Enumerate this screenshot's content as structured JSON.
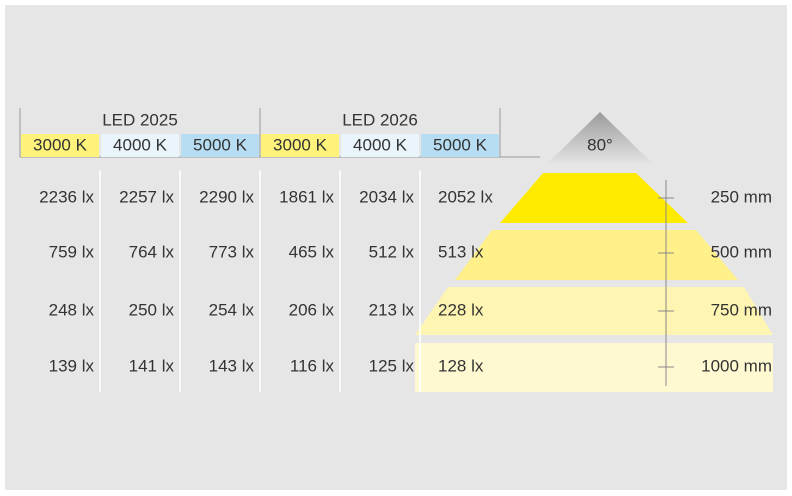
{
  "header": {
    "groups": [
      "LED 2025",
      "LED 2026"
    ],
    "columns": [
      "3000 K",
      "4000 K",
      "5000 K",
      "3000 K",
      "4000 K",
      "5000 K"
    ]
  },
  "table": {
    "rows": [
      [
        "2236 lx",
        "2257 lx",
        "2290 lx",
        "1861 lx",
        "2034 lx",
        "2052 lx"
      ],
      [
        "759 lx",
        "764 lx",
        "773 lx",
        "465 lx",
        "512 lx",
        "513 lx"
      ],
      [
        "248 lx",
        "250 lx",
        "254 lx",
        "206 lx",
        "213 lx",
        "228 lx"
      ],
      [
        "139 lx",
        "141 lx",
        "143 lx",
        "116 lx",
        "125 lx",
        "128 lx"
      ]
    ]
  },
  "beam": {
    "angle": "80°",
    "distances": [
      "250 mm",
      "500 mm",
      "750 mm",
      "1000 mm"
    ]
  }
}
